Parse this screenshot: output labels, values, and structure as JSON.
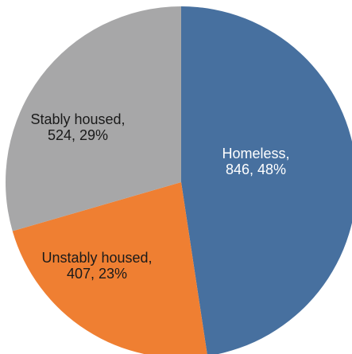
{
  "chart_data": {
    "type": "pie",
    "title": "",
    "start_angle_deg": 0,
    "direction": "clockwise",
    "slices": [
      {
        "name": "Homeless",
        "value": 846,
        "percent": 48,
        "color": "#47709f",
        "label_line1": "Homeless,",
        "label_line2": "846, 48%",
        "label_color": "#ffffff"
      },
      {
        "name": "Unstably housed",
        "value": 407,
        "percent": 23,
        "color": "#ef7f32",
        "label_line1": "Unstably housed,",
        "label_line2": "407, 23%",
        "label_color": "#1a1a1a"
      },
      {
        "name": "Stably housed",
        "value": 524,
        "percent": 29,
        "color": "#a7a7a8",
        "label_line1": "Stably housed,",
        "label_line2": "524, 29%",
        "label_color": "#1a1a1a"
      }
    ]
  }
}
